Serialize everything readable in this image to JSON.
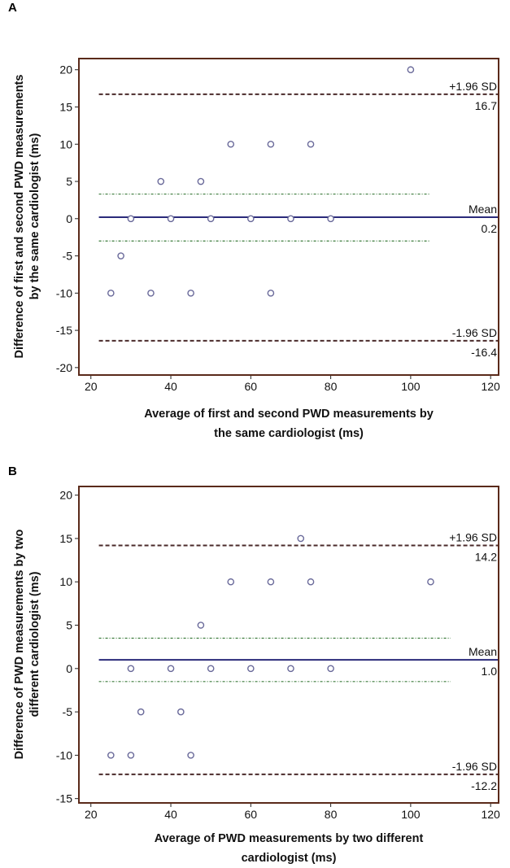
{
  "colors": {
    "frame": "#5a2a1a",
    "mean_line": "#2a2a7a",
    "sd_line": "#4a2a2a",
    "ci_line": "#3a7a3a",
    "point": "#6a6a9a"
  },
  "chart_data": [
    {
      "panel": "A",
      "type": "scatter",
      "xlabel": "Average of first and second PWD measurements by the same cardiologist (ms)",
      "xlabel_lines": [
        "Average of first and second PWD measurements by",
        "the same cardiologist (ms)"
      ],
      "ylabel": "Difference of first and second PWD measurements by the same cardiologist (ms)",
      "ylabel_lines": [
        "Difference of first and second PWD measurements",
        "by the same cardiologist (ms)"
      ],
      "xlim": [
        17,
        122
      ],
      "ylim": [
        -21,
        21.5
      ],
      "x_ticks": [
        20,
        40,
        60,
        80,
        100,
        120
      ],
      "y_ticks": [
        20,
        15,
        10,
        5,
        0,
        -5,
        -10,
        -15,
        -20
      ],
      "points": [
        {
          "x": 100,
          "y": 20
        },
        {
          "x": 55,
          "y": 10
        },
        {
          "x": 65,
          "y": 10
        },
        {
          "x": 75,
          "y": 10
        },
        {
          "x": 37.5,
          "y": 5
        },
        {
          "x": 47.5,
          "y": 5
        },
        {
          "x": 30,
          "y": 0
        },
        {
          "x": 40,
          "y": 0
        },
        {
          "x": 50,
          "y": 0
        },
        {
          "x": 60,
          "y": 0
        },
        {
          "x": 70,
          "y": 0
        },
        {
          "x": 80,
          "y": 0
        },
        {
          "x": 27.5,
          "y": -5
        },
        {
          "x": 25,
          "y": -10
        },
        {
          "x": 35,
          "y": -10
        },
        {
          "x": 45,
          "y": -10
        },
        {
          "x": 65,
          "y": -10
        }
      ],
      "mean": {
        "value": 0.2,
        "label": "Mean",
        "value_label": "0.2"
      },
      "upper_loa": {
        "value": 16.7,
        "label": "+1.96 SD",
        "value_label": "16.7"
      },
      "lower_loa": {
        "value": -16.4,
        "label": "-1.96 SD",
        "value_label": "-16.4"
      },
      "ci_lines": {
        "upper": 3.3,
        "lower": -3.0,
        "x_end": 105
      }
    },
    {
      "panel": "B",
      "type": "scatter",
      "xlabel": "Average of PWD measurements by two different cardiologist (ms)",
      "xlabel_lines": [
        "Average of PWD measurements by two different",
        "cardiologist (ms)"
      ],
      "ylabel": "Difference of PWD measurements by two different cardiologist (ms)",
      "ylabel_lines": [
        "Difference of PWD measurements by two",
        "different cardiologist (ms)"
      ],
      "xlim": [
        17,
        122
      ],
      "ylim": [
        -15.5,
        21
      ],
      "x_ticks": [
        20,
        40,
        60,
        80,
        100,
        120
      ],
      "y_ticks": [
        20,
        15,
        10,
        5,
        0,
        -5,
        -10,
        -15
      ],
      "points": [
        {
          "x": 72.5,
          "y": 15
        },
        {
          "x": 55,
          "y": 10
        },
        {
          "x": 65,
          "y": 10
        },
        {
          "x": 75,
          "y": 10
        },
        {
          "x": 105,
          "y": 10
        },
        {
          "x": 47.5,
          "y": 5
        },
        {
          "x": 30,
          "y": 0
        },
        {
          "x": 40,
          "y": 0
        },
        {
          "x": 50,
          "y": 0
        },
        {
          "x": 60,
          "y": 0
        },
        {
          "x": 70,
          "y": 0
        },
        {
          "x": 80,
          "y": 0
        },
        {
          "x": 32.5,
          "y": -5
        },
        {
          "x": 42.5,
          "y": -5
        },
        {
          "x": 25,
          "y": -10
        },
        {
          "x": 30,
          "y": -10
        },
        {
          "x": 45,
          "y": -10
        }
      ],
      "mean": {
        "value": 1.0,
        "label": "Mean",
        "value_label": "1.0"
      },
      "upper_loa": {
        "value": 14.2,
        "label": "+1.96 SD",
        "value_label": "14.2"
      },
      "lower_loa": {
        "value": -12.2,
        "label": "-1.96 SD",
        "value_label": "-12.2"
      },
      "ci_lines": {
        "upper": 3.5,
        "lower": -1.5,
        "x_end": 110
      }
    }
  ]
}
